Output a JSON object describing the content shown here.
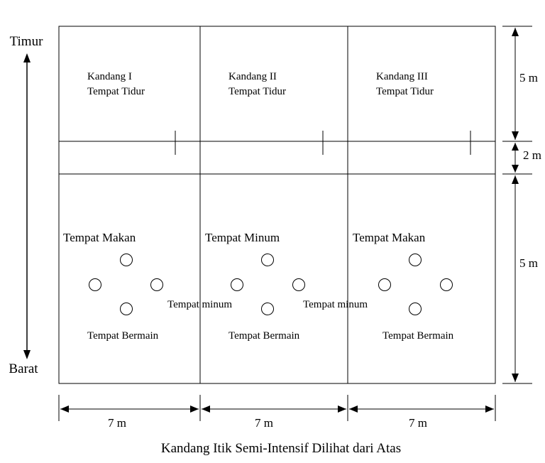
{
  "directions": {
    "top": "Timur",
    "bottom": "Barat"
  },
  "pens": [
    {
      "name": "Kandang I",
      "sleep": "Tempat Tidur",
      "upper_label": "Tempat Makan",
      "lower_label": "Tempat Bermain"
    },
    {
      "name": "Kandang II",
      "sleep": "Tempat Tidur",
      "upper_label": "Tempat Minum",
      "lower_label": "Tempat Bermain"
    },
    {
      "name": "Kandang III",
      "sleep": "Tempat Tidur",
      "upper_label": "Tempat Makan",
      "lower_label": "Tempat Bermain"
    }
  ],
  "between_labels": [
    "Tempat minum",
    "Tempat minum"
  ],
  "dimensions": {
    "heights": [
      "5 m",
      "2 m",
      "5 m"
    ],
    "widths": [
      "7 m",
      "7 m",
      "7 m"
    ]
  },
  "caption": "Kandang Itik Semi-Intensif Dilihat dari Atas"
}
